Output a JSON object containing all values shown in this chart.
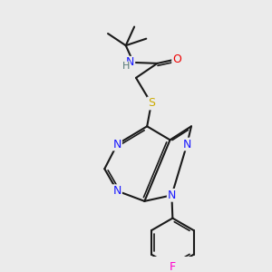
{
  "bg": "#ebebeb",
  "bond_color": "#1a1a1a",
  "lw": 1.5,
  "lw_inner": 1.2,
  "fs": 9,
  "colors": {
    "N": "#1a1aff",
    "O": "#ee0000",
    "S": "#ccaa00",
    "F": "#ff00cc",
    "H": "#557777"
  },
  "bl": 1.0,
  "figsize": [
    3.0,
    3.0
  ],
  "dpi": 100
}
